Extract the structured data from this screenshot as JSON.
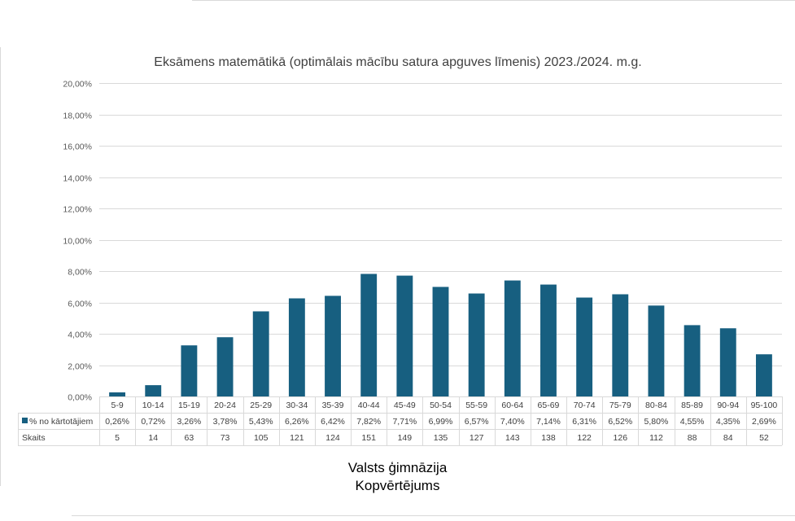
{
  "colors": {
    "bar": "#175f80",
    "grid": "#d9d9d9",
    "axis_text": "#595959",
    "title_text": "#404040",
    "table_border": "#d9d9d9"
  },
  "footer": {
    "line1": "Valsts ģimnāzija",
    "line2": "Kopvērtējums"
  },
  "chart_data": {
    "type": "bar",
    "title": "Eksāmens matemātikā (optimālais mācību satura apguves līmenis) 2023./2024. m.g.",
    "xlabel": "",
    "ylabel": "",
    "ylim": [
      0,
      20
    ],
    "yticks": [
      "0,00%",
      "2,00%",
      "4,00%",
      "6,00%",
      "8,00%",
      "10,00%",
      "12,00%",
      "14,00%",
      "16,00%",
      "18,00%",
      "20,00%"
    ],
    "grid": true,
    "categories": [
      "5-9",
      "10-14",
      "15-19",
      "20-24",
      "25-29",
      "30-34",
      "35-39",
      "40-44",
      "45-49",
      "50-54",
      "55-59",
      "60-64",
      "65-69",
      "70-74",
      "75-79",
      "80-84",
      "85-89",
      "90-94",
      "95-100"
    ],
    "series": [
      {
        "name": "% no kārtotājiem",
        "values": [
          0.26,
          0.72,
          3.26,
          3.78,
          5.43,
          6.26,
          6.42,
          7.82,
          7.71,
          6.99,
          6.57,
          7.4,
          7.14,
          6.31,
          6.52,
          5.8,
          4.55,
          4.35,
          2.69
        ],
        "labels": [
          "0,26%",
          "0,72%",
          "3,26%",
          "3,78%",
          "5,43%",
          "6,26%",
          "6,42%",
          "7,82%",
          "7,71%",
          "6,99%",
          "6,57%",
          "7,40%",
          "7,14%",
          "6,31%",
          "6,52%",
          "5,80%",
          "4,55%",
          "4,35%",
          "2,69%"
        ]
      }
    ],
    "table_rows": [
      {
        "name": "Skaits",
        "values": [
          "5",
          "14",
          "63",
          "73",
          "105",
          "121",
          "124",
          "151",
          "149",
          "135",
          "127",
          "143",
          "138",
          "122",
          "126",
          "112",
          "88",
          "84",
          "52"
        ]
      }
    ]
  }
}
